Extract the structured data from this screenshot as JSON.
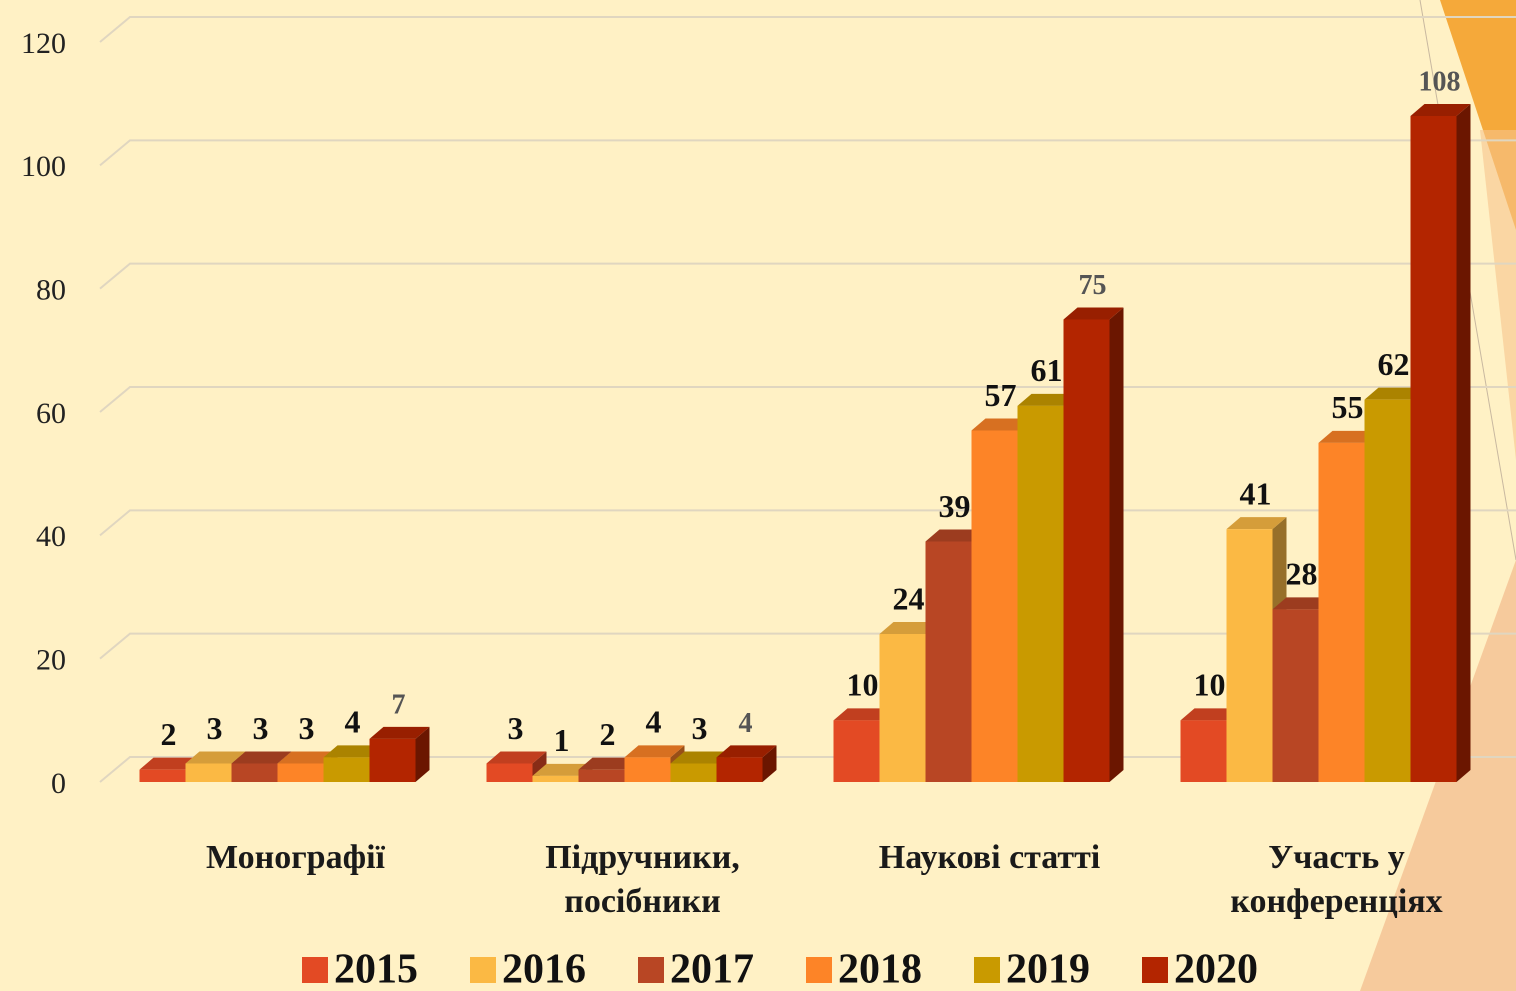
{
  "chart_data": {
    "type": "bar3d",
    "categories": [
      "Монографії",
      "Підручники, посібники",
      "Наукові статті",
      "Участь у конференціях"
    ],
    "series": [
      {
        "name": "2015",
        "color": "#e34a24",
        "values": [
          2,
          3,
          10,
          10
        ]
      },
      {
        "name": "2016",
        "color": "#fbb944",
        "values": [
          3,
          1,
          24,
          41
        ]
      },
      {
        "name": "2017",
        "color": "#b84624",
        "values": [
          3,
          2,
          39,
          28
        ]
      },
      {
        "name": "2018",
        "color": "#fd8427",
        "values": [
          3,
          4,
          57,
          55
        ]
      },
      {
        "name": "2019",
        "color": "#c99a00",
        "values": [
          4,
          3,
          61,
          62
        ]
      },
      {
        "name": "2020",
        "color": "#b32500",
        "values": [
          7,
          4,
          75,
          108
        ]
      }
    ],
    "ylim": [
      0,
      120
    ],
    "yticks": [
      0,
      20,
      40,
      60,
      80,
      100,
      120
    ],
    "grid": true,
    "legend": "bottom"
  }
}
